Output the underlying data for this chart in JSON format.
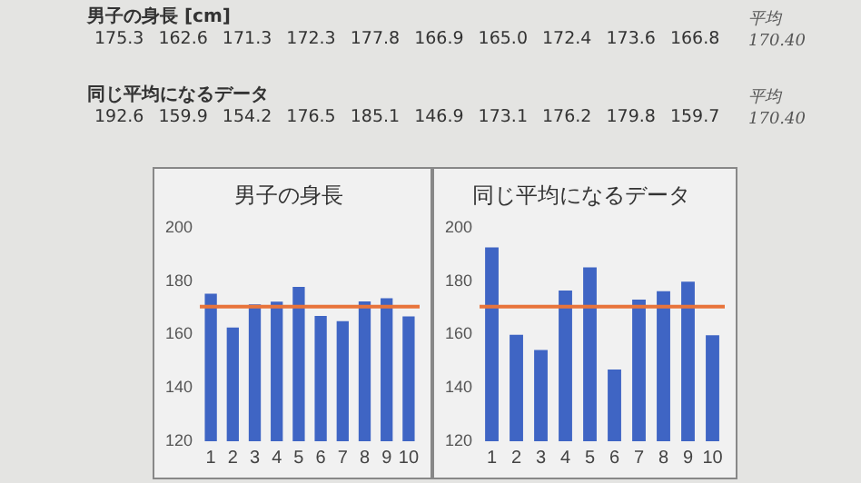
{
  "chart_data": [
    {
      "type": "bar",
      "title": "男子の身長",
      "categories": [
        "1",
        "2",
        "3",
        "4",
        "5",
        "6",
        "7",
        "8",
        "9",
        "10"
      ],
      "values": [
        175.3,
        162.6,
        171.3,
        172.3,
        177.8,
        166.9,
        165.0,
        172.4,
        173.6,
        166.8
      ],
      "color": "#3f65c4",
      "ylim": [
        120,
        200
      ],
      "yticks": [
        120,
        140,
        160,
        180,
        200
      ],
      "grid": false,
      "legend": false,
      "ref_lines": [
        {
          "axis": "y",
          "value": 170.4,
          "color": "#e8743b"
        }
      ],
      "annotations": [
        "男子の身長 [cm]",
        "175.3 162.6 171.3 172.3 177.8 166.9 165.0 172.4 173.6 166.8",
        "平均",
        "170.40"
      ]
    },
    {
      "type": "bar",
      "title": "同じ平均になるデータ",
      "categories": [
        "1",
        "2",
        "3",
        "4",
        "5",
        "6",
        "7",
        "8",
        "9",
        "10"
      ],
      "values": [
        192.6,
        159.9,
        154.2,
        176.5,
        185.1,
        146.9,
        173.1,
        176.2,
        179.8,
        159.7
      ],
      "color": "#3f65c4",
      "ylim": [
        120,
        200
      ],
      "yticks": [
        120,
        140,
        160,
        180,
        200
      ],
      "grid": false,
      "legend": false,
      "ref_lines": [
        {
          "axis": "y",
          "value": 170.4,
          "color": "#e8743b"
        }
      ],
      "annotations": [
        "同じ平均になるデータ",
        "192.6 159.9 154.2 176.5 185.1 146.9 173.1 176.2 179.8 159.7",
        "平均",
        "170.40"
      ]
    }
  ]
}
